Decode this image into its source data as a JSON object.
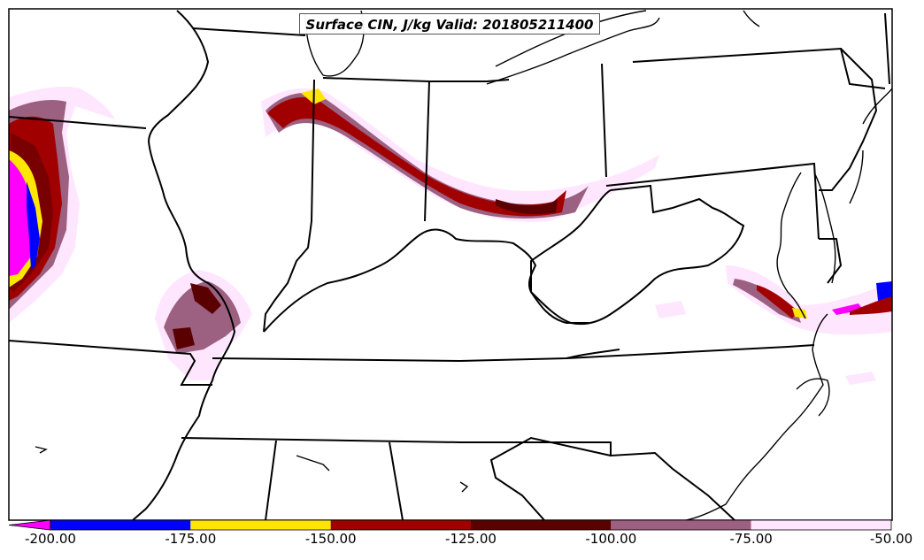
{
  "title": "Surface CIN, J/kg Valid: 201805211400",
  "colorbar": {
    "labels": [
      "-200.00",
      "-175.00",
      "-150.00",
      "-125.00",
      "-100.00",
      "-75.00",
      "-50.00"
    ],
    "colors": [
      "#ff00ff",
      "#0000ff",
      "#ffe600",
      "#a00000",
      "#5a0000",
      "#9c6080",
      "#ffe6ff"
    ]
  }
}
